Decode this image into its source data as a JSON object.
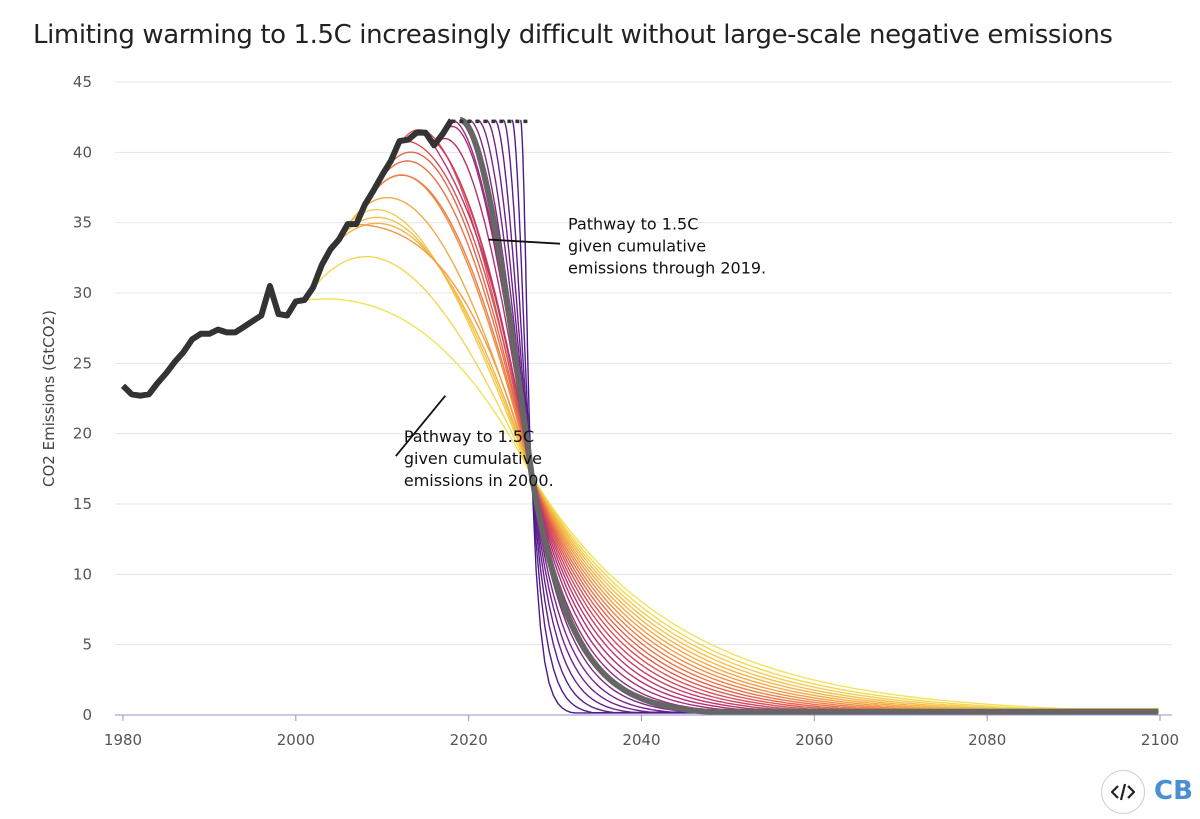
{
  "title": "Limiting warming to 1.5C increasingly difficult without large-scale negative emissions",
  "brand": {
    "logo_text": "CB",
    "logo_color": "#4a8fd0",
    "embed_icon": "code-embed-icon"
  },
  "chart_data": {
    "type": "line",
    "title": "Limiting warming to 1.5C increasingly difficult without large-scale negative emissions",
    "xlabel": "",
    "ylabel": "CO2 Emissions (GtCO2)",
    "xlim": [
      1980,
      2100
    ],
    "ylim": [
      0,
      45
    ],
    "xticks": [
      1980,
      2000,
      2020,
      2040,
      2060,
      2080,
      2100
    ],
    "yticks": [
      0,
      5,
      10,
      15,
      20,
      25,
      30,
      35,
      40,
      45
    ],
    "grid": "horizontal",
    "historical": {
      "color": "#333333",
      "x": [
        1980,
        1981,
        1982,
        1983,
        1984,
        1985,
        1986,
        1987,
        1988,
        1989,
        1990,
        1991,
        1992,
        1993,
        1994,
        1995,
        1996,
        1997,
        1998,
        1999,
        2000,
        2001,
        2002,
        2003,
        2004,
        2005,
        2006,
        2007,
        2008,
        2009,
        2010,
        2011,
        2012,
        2013,
        2014,
        2015,
        2016,
        2017,
        2018
      ],
      "y": [
        23.4,
        22.8,
        22.7,
        22.8,
        23.6,
        24.3,
        25.1,
        25.8,
        26.7,
        27.1,
        27.1,
        27.4,
        27.2,
        27.2,
        27.6,
        28.0,
        28.4,
        30.5,
        28.5,
        28.4,
        29.4,
        29.5,
        30.4,
        32.0,
        33.1,
        33.8,
        34.9,
        34.9,
        36.3,
        37.3,
        38.4,
        39.4,
        40.8,
        40.9,
        41.4,
        41.4,
        40.5,
        41.3,
        42.3
      ]
    },
    "plateau": {
      "x": [
        2018,
        2027
      ],
      "y": [
        42.2,
        42.2
      ],
      "color": "#333333",
      "style": "dotted"
    },
    "pathways": {
      "start_years": [
        2000,
        2001,
        2002,
        2003,
        2004,
        2005,
        2006,
        2007,
        2008,
        2009,
        2010,
        2011,
        2012,
        2013,
        2014,
        2015,
        2016,
        2017,
        2018,
        2019,
        2020,
        2021,
        2022,
        2023,
        2024,
        2025,
        2026
      ],
      "highlight_year": 2019,
      "crossing_point": {
        "x": 2027.3,
        "y": 17.0
      },
      "end_value_2100": 0.5,
      "color_ramp": [
        "#f2e35a",
        "#f4a742",
        "#e4604c",
        "#b83070",
        "#7a2590",
        "#4b1a8a"
      ],
      "highlight_color": "#666666"
    },
    "annotations": [
      {
        "lines": [
          "Pathway to 1.5C",
          "given cumulative",
          "emissions through 2019."
        ],
        "x": 2031.5,
        "y": 34.5,
        "pointer": [
          2022.3,
          33.8
        ]
      },
      {
        "lines": [
          "Pathway to 1.5C",
          "given cumulative",
          "emissions in 2000."
        ],
        "x": 2012.5,
        "y": 19.4,
        "pointer": [
          2017.3,
          22.7
        ]
      }
    ]
  }
}
